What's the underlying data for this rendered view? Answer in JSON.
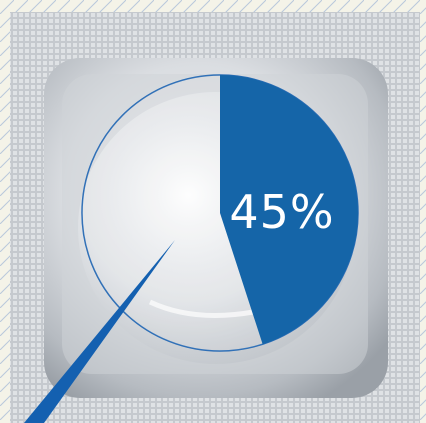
{
  "chart_data": {
    "type": "pie",
    "title": "",
    "slices": [
      {
        "label": "",
        "value": 45,
        "color": "#1565a8",
        "highlighted": true
      },
      {
        "label": "",
        "value": 55,
        "color": "#ffffff",
        "highlighted": false
      }
    ],
    "data_label": "45%",
    "legend": "none"
  },
  "colors": {
    "accent": "#1565a8",
    "ring": "#2a6cb5",
    "background": "#f4f3e8",
    "wrapper": "#c9cdd2"
  },
  "decor": {
    "wrapper_icon": "square-foil-packet-icon",
    "pointer_icon": "needle-pointer-icon"
  }
}
